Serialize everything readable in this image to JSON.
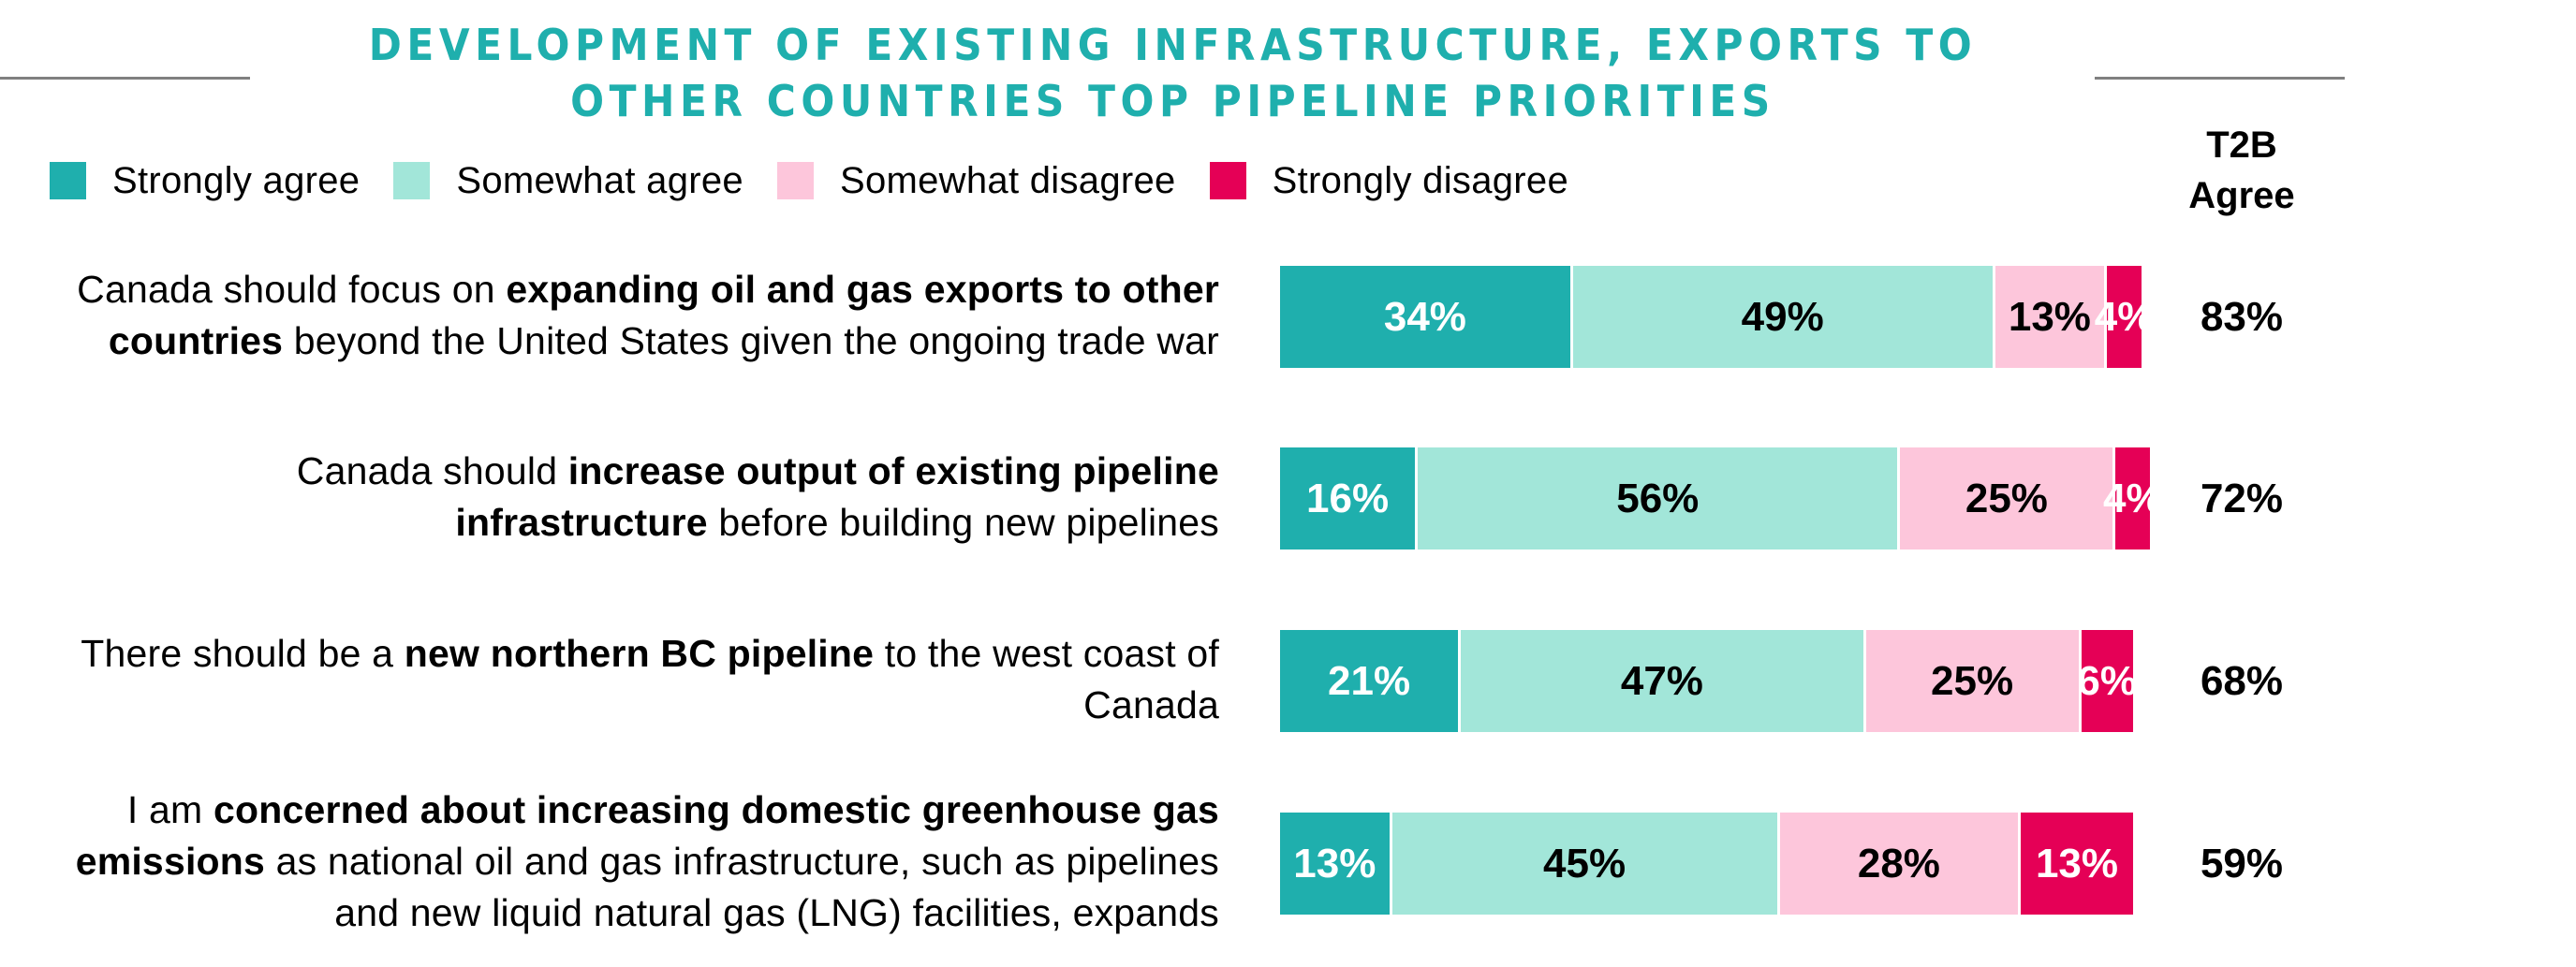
{
  "title": {
    "line1": "DEVELOPMENT OF EXISTING INFRASTRUCTURE, EXPORTS TO",
    "line2": "OTHER COUNTRIES TOP PIPELINE PRIORITIES"
  },
  "colors": {
    "strongly_agree": "#1FAFAD",
    "somewhat_agree": "#A2E6D9",
    "somewhat_disagree": "#FDC6DB",
    "strongly_disagree": "#E50056",
    "title": "#1FAFAD",
    "rule": "#808080"
  },
  "t2b_header": {
    "line1": "T2B",
    "line2": "Agree"
  },
  "chart_data": {
    "type": "bar",
    "orientation": "horizontal",
    "stacked": true,
    "title": "DEVELOPMENT OF EXISTING INFRASTRUCTURE, EXPORTS TO OTHER COUNTRIES TOP PIPELINE PRIORITIES",
    "legend_position": "top-left",
    "legend": [
      "Strongly agree",
      "Somewhat agree",
      "Somewhat disagree",
      "Strongly disagree"
    ],
    "categories": [
      {
        "parts": [
          {
            "text": "Canada should focus on ",
            "bold": false
          },
          {
            "text": "expanding oil and gas exports to other countries",
            "bold": true
          },
          {
            "text": " beyond the United States given the ongoing trade war",
            "bold": false
          }
        ]
      },
      {
        "parts": [
          {
            "text": "Canada should ",
            "bold": false
          },
          {
            "text": "increase output of existing pipeline infrastructure",
            "bold": true
          },
          {
            "text": " before building new pipelines",
            "bold": false
          }
        ]
      },
      {
        "parts": [
          {
            "text": "There should be a ",
            "bold": false
          },
          {
            "text": "new northern BC pipeline",
            "bold": true
          },
          {
            "text": " to the west coast of Canada",
            "bold": false
          }
        ]
      },
      {
        "parts": [
          {
            "text": "I am ",
            "bold": false
          },
          {
            "text": "concerned about increasing domestic greenhouse gas emissions",
            "bold": true
          },
          {
            "text": " as national oil and gas infrastructure, such as pipelines and new liquid natural gas (LNG) facilities, expands",
            "bold": false
          }
        ]
      }
    ],
    "series": [
      {
        "name": "Strongly agree",
        "values": [
          34,
          16,
          21,
          13
        ],
        "labels": [
          "34%",
          "16%",
          "21%",
          "13%"
        ]
      },
      {
        "name": "Somewhat agree",
        "values": [
          49,
          56,
          47,
          45
        ],
        "labels": [
          "49%",
          "56%",
          "47%",
          "45%"
        ]
      },
      {
        "name": "Somewhat disagree",
        "values": [
          13,
          25,
          25,
          28
        ],
        "labels": [
          "13%",
          "25%",
          "25%",
          "28%"
        ]
      },
      {
        "name": "Strongly disagree",
        "values": [
          4,
          4,
          6,
          13
        ],
        "labels": [
          "4%",
          "4%",
          "6%",
          "13%"
        ]
      }
    ],
    "t2b": {
      "label": "T2B Agree",
      "values": [
        83,
        72,
        68,
        59
      ],
      "labels": [
        "83%",
        "72%",
        "68%",
        "59%"
      ]
    },
    "xlim": [
      0,
      100
    ]
  }
}
